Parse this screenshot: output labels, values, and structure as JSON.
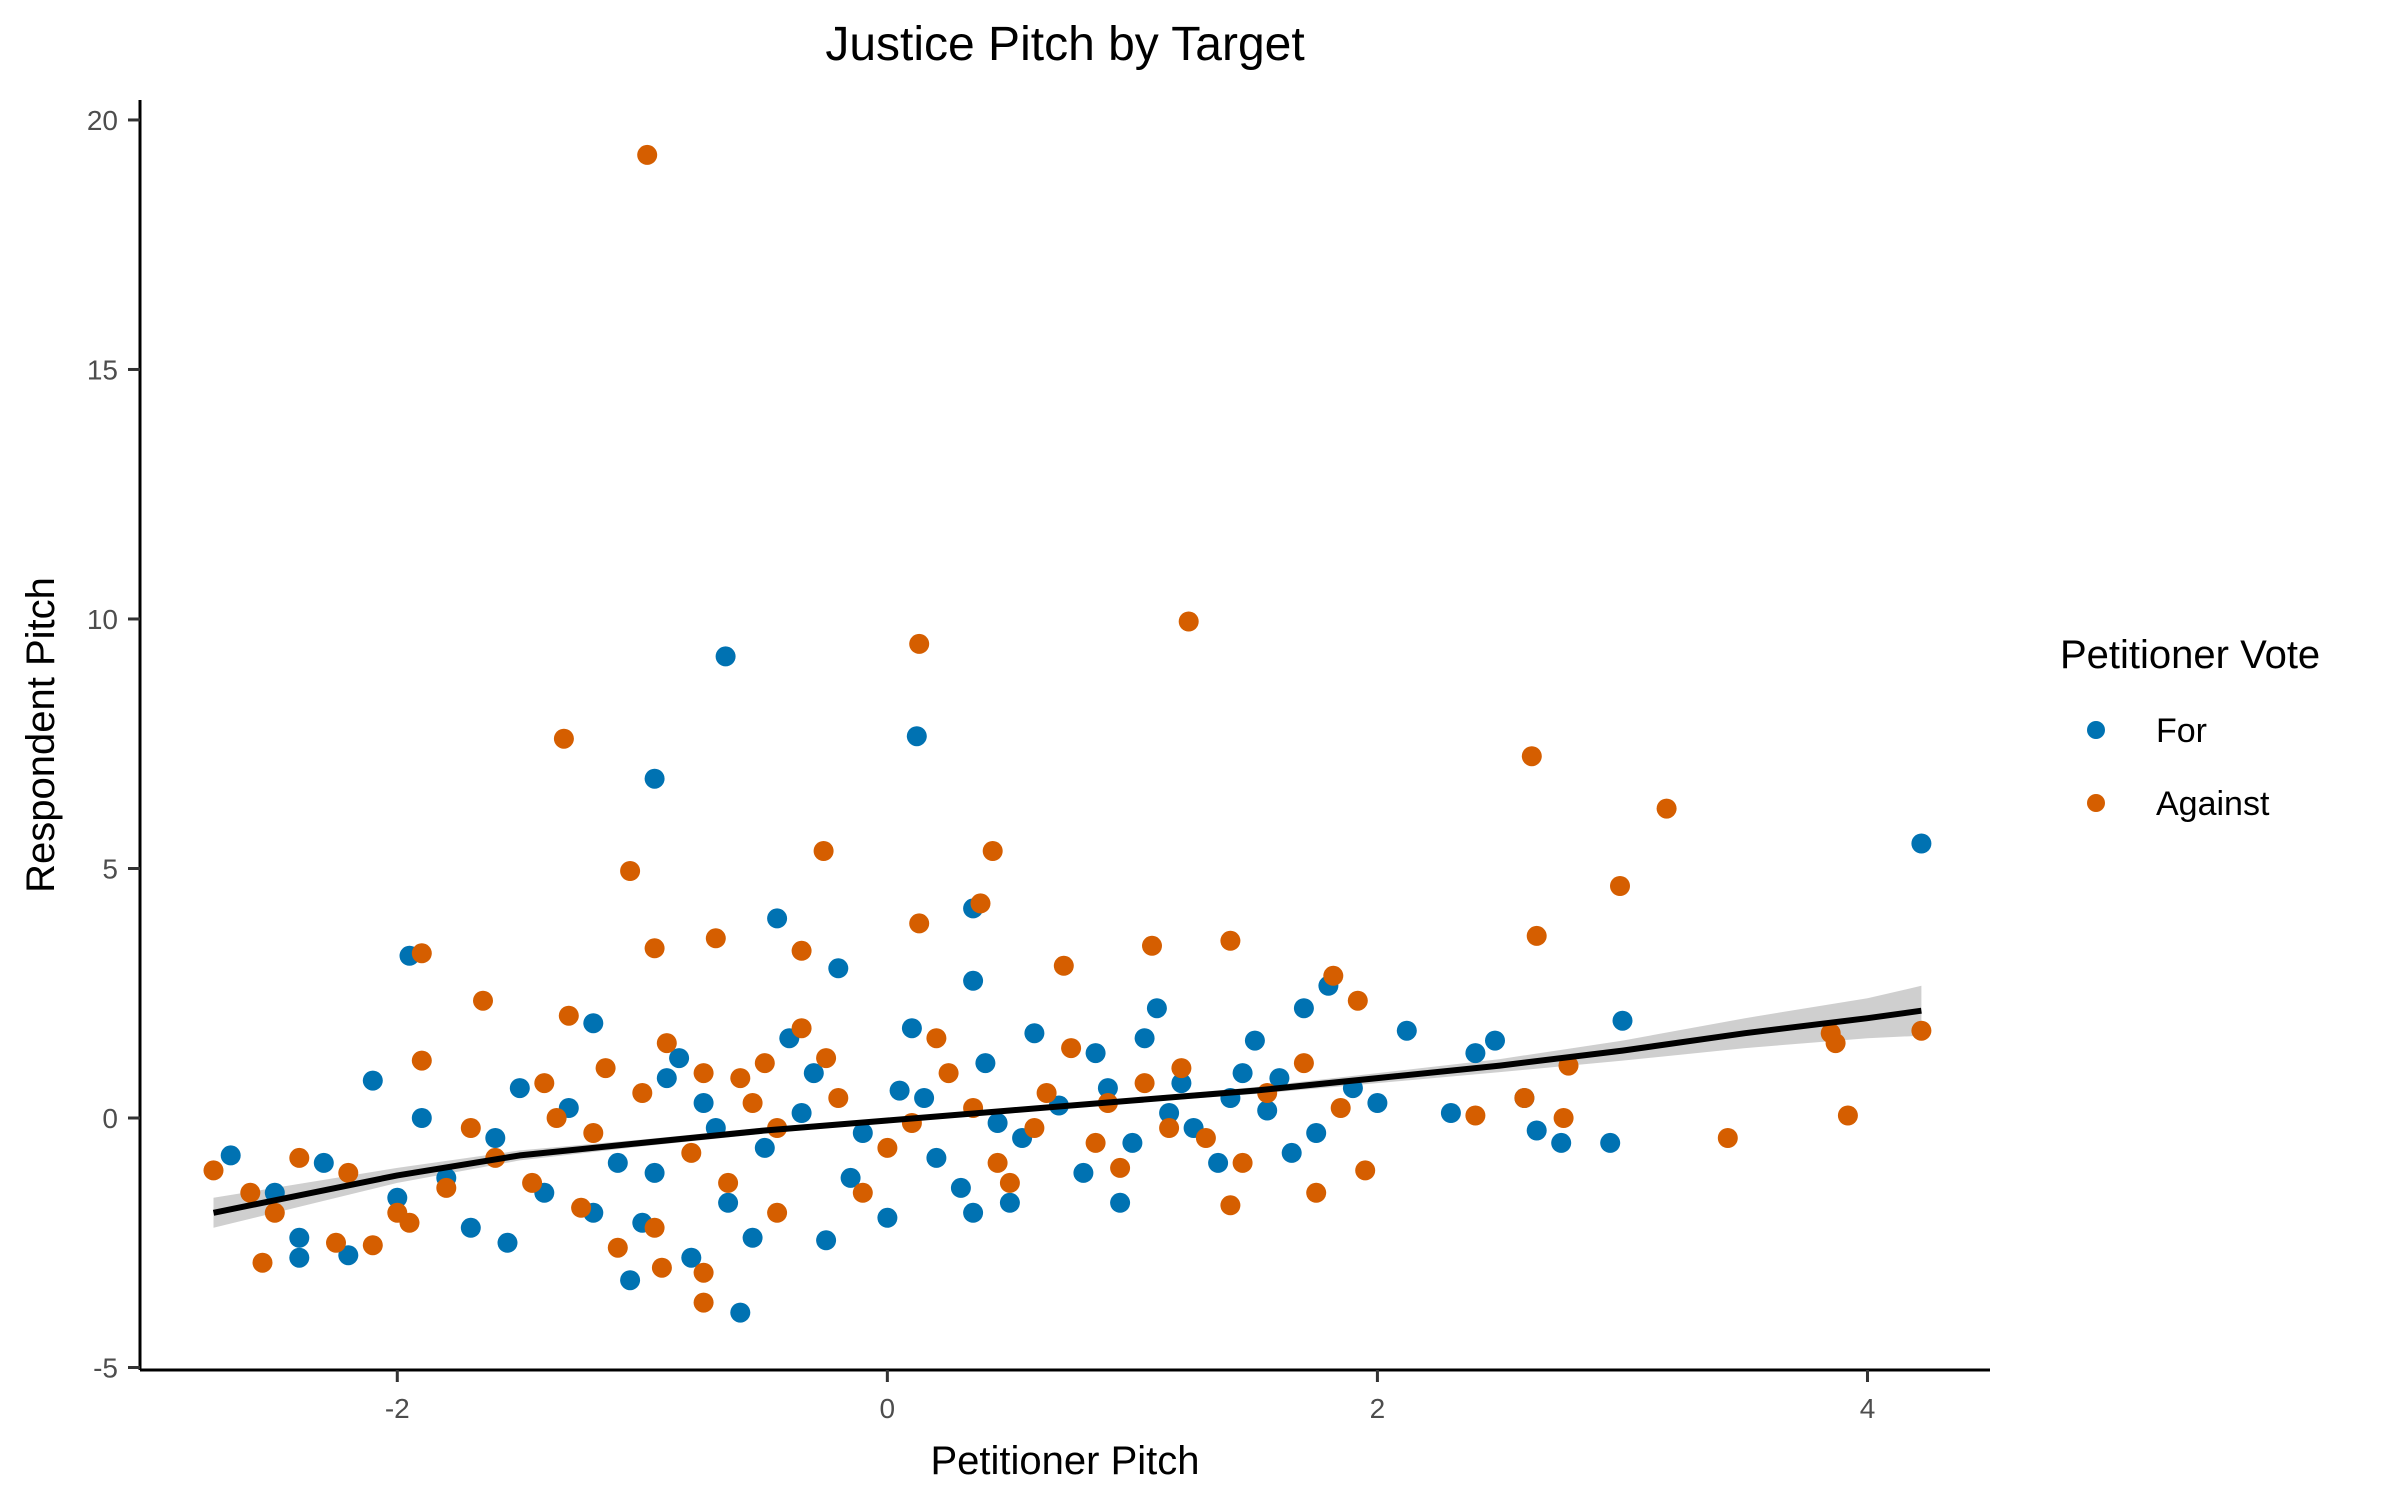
{
  "chart_data": {
    "type": "scatter",
    "title": "Justice Pitch by Target",
    "xlabel": "Petitioner Pitch",
    "ylabel": "Respondent Pitch",
    "xlim": [
      -3.05,
      4.5
    ],
    "ylim": [
      -5.05,
      20.4
    ],
    "x_ticks": [
      -2,
      0,
      2,
      4
    ],
    "y_ticks": [
      -5,
      0,
      5,
      10,
      15,
      20
    ],
    "x_tick_labels": [
      "-2",
      "0",
      "2",
      "4"
    ],
    "y_tick_labels": [
      "-5",
      "0",
      "5",
      "10",
      "15",
      "20"
    ],
    "grid": false,
    "legend": {
      "title": "Petitioner Vote",
      "position": "right"
    },
    "colors": {
      "For": "#0072B2",
      "Against": "#D55E00",
      "smooth": "#000000",
      "ribbon": "#bfbfbf"
    },
    "series": [
      {
        "name": "For",
        "color": "#0072B2",
        "points": [
          [
            -0.66,
            9.25
          ],
          [
            -0.95,
            6.8
          ],
          [
            0.12,
            7.65
          ],
          [
            4.22,
            5.5
          ],
          [
            0.35,
            4.2
          ],
          [
            -0.45,
            4.0
          ],
          [
            -1.95,
            3.25
          ],
          [
            1.8,
            2.65
          ],
          [
            0.35,
            2.75
          ],
          [
            1.1,
            2.2
          ],
          [
            1.7,
            2.2
          ],
          [
            -1.2,
            1.9
          ],
          [
            2.48,
            1.55
          ],
          [
            3.0,
            1.95
          ],
          [
            2.12,
            1.75
          ],
          [
            -2.1,
            0.75
          ],
          [
            -2.68,
            -0.75
          ],
          [
            -2.4,
            -2.4
          ],
          [
            -2.4,
            -2.8
          ],
          [
            -2.2,
            -2.75
          ],
          [
            -1.05,
            -3.25
          ],
          [
            -0.6,
            -3.9
          ],
          [
            -0.8,
            -2.8
          ],
          [
            -0.25,
            -2.45
          ],
          [
            0.35,
            -1.9
          ],
          [
            0.95,
            -1.7
          ],
          [
            2.6,
            0.4
          ],
          [
            2.65,
            -0.25
          ],
          [
            2.75,
            -0.5
          ],
          [
            2.95,
            -0.5
          ],
          [
            2.3,
            0.1
          ],
          [
            2.4,
            1.3
          ],
          [
            1.5,
            1.55
          ],
          [
            -1.55,
            -2.5
          ],
          [
            -1.5,
            0.6
          ],
          [
            -0.2,
            3.0
          ],
          [
            -1.2,
            -1.9
          ],
          [
            -0.95,
            -1.1
          ],
          [
            -0.75,
            0.3
          ],
          [
            -0.5,
            -0.6
          ],
          [
            -0.3,
            0.9
          ],
          [
            -0.1,
            -0.3
          ],
          [
            0.05,
            0.55
          ],
          [
            0.2,
            -0.8
          ],
          [
            0.4,
            1.1
          ],
          [
            0.55,
            -0.4
          ],
          [
            0.7,
            0.25
          ],
          [
            0.85,
            1.3
          ],
          [
            1.0,
            -0.5
          ],
          [
            1.2,
            0.7
          ],
          [
            1.35,
            -0.9
          ],
          [
            1.55,
            0.15
          ],
          [
            1.75,
            -0.3
          ],
          [
            1.9,
            0.6
          ],
          [
            -1.8,
            -1.2
          ],
          [
            -1.6,
            -0.4
          ],
          [
            -1.4,
            -1.5
          ],
          [
            -1.3,
            0.2
          ],
          [
            -1.1,
            -0.9
          ],
          [
            -0.85,
            1.2
          ],
          [
            -0.65,
            -1.7
          ],
          [
            -0.4,
            1.6
          ],
          [
            -0.15,
            -1.2
          ],
          [
            0.1,
            1.8
          ],
          [
            0.3,
            -1.4
          ],
          [
            0.6,
            1.7
          ],
          [
            0.8,
            -1.1
          ],
          [
            1.05,
            1.6
          ],
          [
            1.25,
            -0.2
          ],
          [
            1.45,
            0.9
          ],
          [
            1.65,
            -0.7
          ],
          [
            2.0,
            0.3
          ],
          [
            -2.0,
            -1.6
          ],
          [
            -1.7,
            -2.2
          ],
          [
            -1.0,
            -2.1
          ],
          [
            -0.55,
            -2.4
          ],
          [
            0.0,
            -2.0
          ],
          [
            0.5,
            -1.7
          ],
          [
            -0.9,
            0.8
          ],
          [
            -0.7,
            -0.2
          ],
          [
            -0.35,
            0.1
          ],
          [
            0.15,
            0.4
          ],
          [
            0.45,
            -0.1
          ],
          [
            0.9,
            0.6
          ],
          [
            1.15,
            0.1
          ],
          [
            1.4,
            0.4
          ],
          [
            1.6,
            0.8
          ],
          [
            -2.3,
            -0.9
          ],
          [
            -2.5,
            -1.5
          ],
          [
            -1.9,
            0.0
          ]
        ]
      },
      {
        "name": "Against",
        "color": "#D55E00",
        "points": [
          [
            -0.98,
            19.3
          ],
          [
            1.23,
            9.95
          ],
          [
            0.13,
            9.5
          ],
          [
            -1.32,
            7.6
          ],
          [
            2.63,
            7.25
          ],
          [
            3.18,
            6.2
          ],
          [
            -0.26,
            5.35
          ],
          [
            0.43,
            5.35
          ],
          [
            -1.05,
            4.95
          ],
          [
            2.99,
            4.65
          ],
          [
            0.38,
            4.3
          ],
          [
            0.13,
            3.9
          ],
          [
            2.65,
            3.65
          ],
          [
            -0.7,
            3.6
          ],
          [
            1.4,
            3.55
          ],
          [
            -0.95,
            3.4
          ],
          [
            -1.9,
            3.3
          ],
          [
            1.08,
            3.45
          ],
          [
            -0.35,
            3.35
          ],
          [
            -1.65,
            2.35
          ],
          [
            1.82,
            2.85
          ],
          [
            1.92,
            2.35
          ],
          [
            -1.3,
            2.05
          ],
          [
            0.72,
            3.05
          ],
          [
            -1.9,
            1.15
          ],
          [
            2.78,
            1.05
          ],
          [
            3.85,
            1.7
          ],
          [
            3.87,
            1.5
          ],
          [
            4.22,
            1.75
          ],
          [
            3.92,
            0.05
          ],
          [
            3.43,
            -0.4
          ],
          [
            2.76,
            0.0
          ],
          [
            2.6,
            0.4
          ],
          [
            2.4,
            0.05
          ],
          [
            1.95,
            -1.05
          ],
          [
            1.75,
            -1.5
          ],
          [
            1.4,
            -1.75
          ],
          [
            -2.75,
            -1.05
          ],
          [
            -2.55,
            -2.9
          ],
          [
            -2.5,
            -1.9
          ],
          [
            -2.25,
            -2.5
          ],
          [
            -0.92,
            -3.0
          ],
          [
            -0.75,
            -3.1
          ],
          [
            -0.75,
            -3.7
          ],
          [
            -1.1,
            -2.6
          ],
          [
            -0.45,
            -1.9
          ],
          [
            -2.1,
            -2.55
          ],
          [
            -1.95,
            -2.1
          ],
          [
            -0.6,
            0.8
          ],
          [
            -0.8,
            -0.7
          ],
          [
            -1.0,
            0.5
          ],
          [
            -1.2,
            -0.3
          ],
          [
            -1.4,
            0.7
          ],
          [
            -0.45,
            -0.2
          ],
          [
            -0.25,
            1.2
          ],
          [
            0.0,
            -0.6
          ],
          [
            0.25,
            0.9
          ],
          [
            0.45,
            -0.9
          ],
          [
            0.65,
            0.5
          ],
          [
            0.85,
            -0.5
          ],
          [
            1.05,
            0.7
          ],
          [
            1.3,
            -0.4
          ],
          [
            1.55,
            0.5
          ],
          [
            1.85,
            0.2
          ],
          [
            -1.6,
            -0.8
          ],
          [
            -1.8,
            -1.4
          ],
          [
            -2.0,
            -1.9
          ],
          [
            -2.2,
            -1.1
          ],
          [
            -1.45,
            -1.3
          ],
          [
            -1.15,
            1.0
          ],
          [
            -0.9,
            1.5
          ],
          [
            -0.65,
            -1.3
          ],
          [
            -0.35,
            1.8
          ],
          [
            -0.1,
            -1.5
          ],
          [
            0.2,
            1.6
          ],
          [
            0.5,
            -1.3
          ],
          [
            0.75,
            1.4
          ],
          [
            0.95,
            -1.0
          ],
          [
            1.2,
            1.0
          ],
          [
            1.45,
            -0.9
          ],
          [
            1.7,
            1.1
          ],
          [
            -1.25,
            -1.8
          ],
          [
            -0.95,
            -2.2
          ],
          [
            -0.55,
            0.3
          ],
          [
            -0.2,
            0.4
          ],
          [
            0.1,
            -0.1
          ],
          [
            0.35,
            0.2
          ],
          [
            0.6,
            -0.2
          ],
          [
            0.9,
            0.3
          ],
          [
            1.15,
            -0.2
          ],
          [
            -2.6,
            -1.5
          ],
          [
            -2.4,
            -0.8
          ],
          [
            -1.7,
            -0.2
          ],
          [
            -1.35,
            0.0
          ],
          [
            -0.75,
            0.9
          ],
          [
            -0.5,
            1.1
          ]
        ]
      }
    ],
    "smooth_line": {
      "x": [
        -2.75,
        -2.0,
        -1.5,
        -1.0,
        -0.5,
        0.0,
        0.5,
        1.0,
        1.5,
        2.0,
        2.5,
        3.0,
        3.5,
        4.0,
        4.22
      ],
      "y": [
        -1.9,
        -1.15,
        -0.75,
        -0.5,
        -0.25,
        -0.05,
        0.15,
        0.35,
        0.55,
        0.8,
        1.05,
        1.35,
        1.7,
        2.0,
        2.15
      ]
    },
    "ribbon": {
      "x": [
        -2.75,
        -2.0,
        -1.5,
        -1.0,
        -0.5,
        0.0,
        0.5,
        1.0,
        1.5,
        2.0,
        2.5,
        3.0,
        3.5,
        4.0,
        4.22
      ],
      "lower": [
        -2.2,
        -1.3,
        -0.85,
        -0.57,
        -0.31,
        -0.1,
        0.1,
        0.3,
        0.48,
        0.7,
        0.92,
        1.15,
        1.4,
        1.6,
        1.65
      ],
      "upper": [
        -1.6,
        -1.0,
        -0.65,
        -0.43,
        -0.19,
        0.0,
        0.2,
        0.4,
        0.62,
        0.9,
        1.18,
        1.55,
        2.0,
        2.4,
        2.65
      ]
    }
  }
}
